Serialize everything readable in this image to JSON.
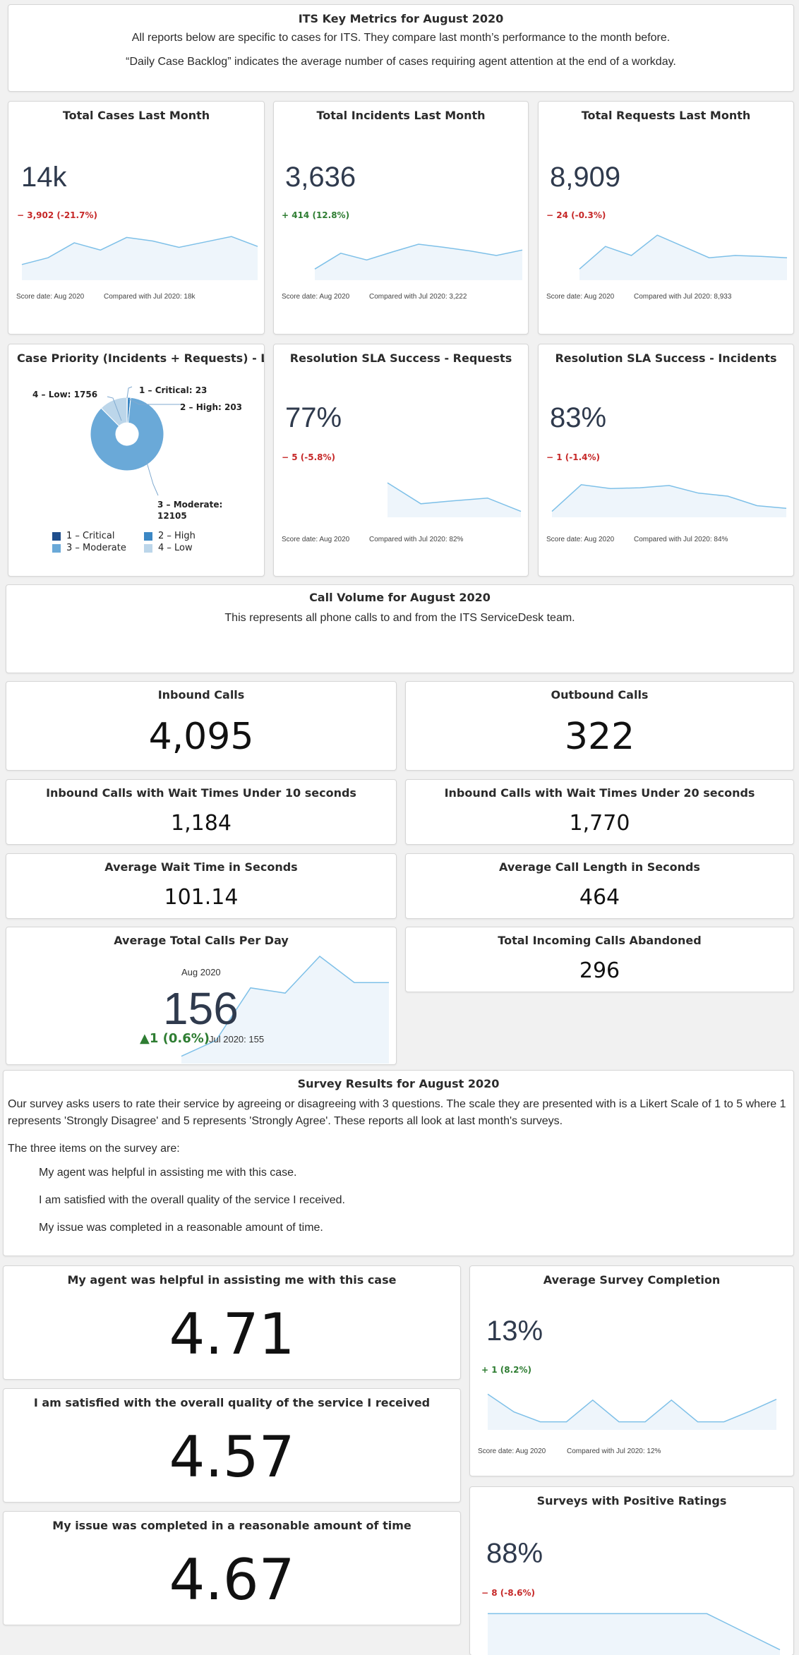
{
  "header": {
    "title": "ITS Key Metrics for August 2020",
    "line1": "All reports below are specific to cases for ITS. They compare last month’s performance to the month before.",
    "line2": "“Daily Case Backlog” indicates the average number of cases requiring agent attention at the end of a workday."
  },
  "kpis": {
    "total_cases": {
      "title": "Total Cases Last Month",
      "value": "14k",
      "delta": "− 3,902 (-21.7%)",
      "score_date": "Score date: Aug 2020",
      "compared": "Compared with Jul 2020: 18k",
      "trend": [
        30,
        45,
        78,
        62,
        90,
        82,
        68,
        80,
        92,
        70
      ]
    },
    "total_incidents": {
      "title": "Total Incidents Last Month",
      "value": "3,636",
      "delta": "+ 414 (12.8%)",
      "score_date": "Score date: Aug 2020",
      "compared": "Compared with Jul 2020: 3,222",
      "trend": [
        20,
        55,
        40,
        58,
        75,
        68,
        60,
        50,
        62
      ]
    },
    "total_requests": {
      "title": "Total Requests Last Month",
      "value": "8,909",
      "delta": "− 24 (-0.3%)",
      "score_date": "Score date: Aug 2020",
      "compared": "Compared with Jul 2020: 8,933",
      "trend": [
        20,
        70,
        50,
        95,
        70,
        45,
        50,
        48,
        45
      ]
    },
    "sla_requests": {
      "title": "Resolution SLA Success - Requests",
      "value": "77%",
      "delta": "− 5 (-5.8%)",
      "score_date": "Score date: Aug 2020",
      "compared": "Compared with Jul 2020: 82%",
      "trend": [
        85,
        30,
        38,
        45,
        10
      ]
    },
    "sla_incidents": {
      "title": "Resolution SLA Success - Incidents",
      "value": "83%",
      "delta": "− 1 (-1.4%)",
      "score_date": "Score date: Aug 2020",
      "compared": "Compared with Jul 2020: 84%",
      "trend": [
        10,
        80,
        70,
        72,
        78,
        58,
        50,
        25,
        18
      ]
    }
  },
  "priority": {
    "title": "Case Priority (Incidents + Requests) - Last Month",
    "labels": {
      "critical": "1 – Critical: 23",
      "high": "2 – High: 203",
      "moderate_a": "3 – Moderate:",
      "moderate_b": "12105",
      "low": "4 – Low: 1756"
    },
    "legend": {
      "critical": "1 – Critical",
      "high": "2 – High",
      "moderate": "3 – Moderate",
      "low": "4 – Low"
    },
    "colors": {
      "critical": "#1f4e8c",
      "high": "#3b87c4",
      "moderate": "#6aa9d8",
      "low": "#bcd6ea"
    },
    "slices": [
      {
        "name": "1 – Critical",
        "value": 23
      },
      {
        "name": "2 – High",
        "value": 203
      },
      {
        "name": "3 – Moderate",
        "value": 12105
      },
      {
        "name": "4 – Low",
        "value": 1756
      }
    ]
  },
  "call_volume": {
    "title": "Call Volume for August 2020",
    "subtitle": "This represents all phone calls to and from the ITS ServiceDesk team."
  },
  "calls": {
    "inbound": {
      "title": "Inbound Calls",
      "value": "4,095"
    },
    "outbound": {
      "title": "Outbound Calls",
      "value": "322"
    },
    "under10": {
      "title": "Inbound Calls with Wait Times Under 10 seconds",
      "value": "1,184"
    },
    "under20": {
      "title": "Inbound Calls with Wait Times Under 20 seconds",
      "value": "1,770"
    },
    "avg_wait": {
      "title": "Average Wait Time in Seconds",
      "value": "101.14"
    },
    "avg_length": {
      "title": "Average Call Length in Seconds",
      "value": "464"
    },
    "avg_per_day": {
      "title": "Average Total Calls Per Day",
      "period": "Aug 2020",
      "value": "156",
      "delta": "▲1 (0.6%)",
      "compare": "Jul 2020: 155",
      "trend": [
        5,
        20,
        70,
        65,
        100,
        75,
        75
      ]
    },
    "abandoned": {
      "title": "Total Incoming Calls Abandoned",
      "value": "296"
    }
  },
  "survey": {
    "title": "Survey Results for August 2020",
    "intro": "Our survey asks users to rate their service by agreeing or disagreeing with 3 questions. The scale they are presented with is a Likert Scale of 1 to 5 where 1 represents 'Strongly Disagree' and 5 represents 'Strongly Agree'. These reports all look at last month's surveys.",
    "items_intro": "The three items on the survey are:",
    "items": [
      "My agent was helpful in assisting me with this case.",
      "I am satisfied with the overall quality of the service I received.",
      "My issue was completed in a reasonable amount of time."
    ]
  },
  "scores": {
    "helpful": {
      "title": "My agent was helpful in assisting me with this case",
      "value": "4.71"
    },
    "satisfied": {
      "title": "I am satisfied with the overall quality of the service I received",
      "value": "4.57"
    },
    "timely": {
      "title": "My issue was completed in a reasonable amount of time",
      "value": "4.67"
    }
  },
  "survey_kpis": {
    "completion": {
      "title": "Average Survey Completion",
      "value": "13%",
      "delta": "+ 1 (8.2%)",
      "score_date": "Score date: Aug 2020",
      "compared": "Compared with Jul 2020: 12%",
      "trend": [
        85,
        40,
        15,
        15,
        70,
        15,
        15,
        70,
        15,
        15,
        42,
        72
      ]
    },
    "positive": {
      "title": "Surveys with Positive Ratings",
      "value": "88%",
      "delta": "− 8 (-8.6%)",
      "trend": [
        90,
        90,
        90,
        90,
        90,
        90,
        90,
        50,
        10
      ]
    }
  }
}
